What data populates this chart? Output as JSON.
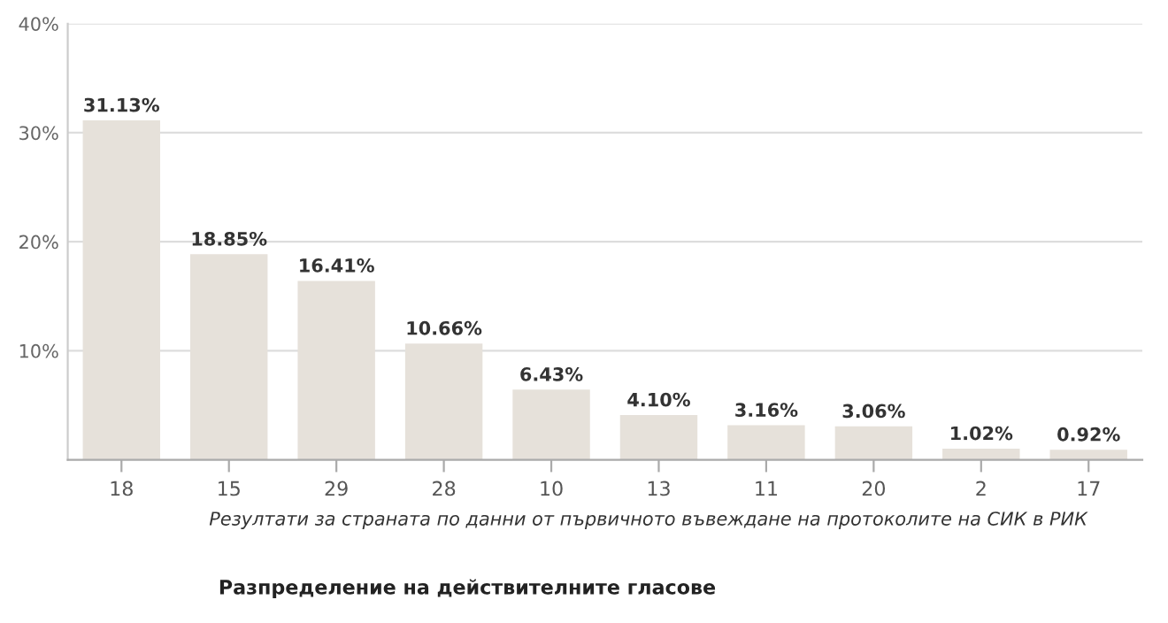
{
  "chart_data": {
    "type": "bar",
    "title": "Разпределение на действителните гласове",
    "categories": [
      "18",
      "15",
      "29",
      "28",
      "10",
      "13",
      "11",
      "20",
      "2",
      "17"
    ],
    "values": [
      31.13,
      18.85,
      16.41,
      10.66,
      6.43,
      4.1,
      3.16,
      3.06,
      1.02,
      0.92
    ],
    "value_labels": [
      "31.13%",
      "18.85%",
      "16.41%",
      "10.66%",
      "6.43%",
      "4.10%",
      "3.16%",
      "3.06%",
      "1.02%",
      "0.92%"
    ],
    "color": "#e6e1da",
    "ylim": [
      0,
      40
    ],
    "yticks": [
      {
        "value": 10,
        "label": "10%"
      },
      {
        "value": 20,
        "label": "20%"
      },
      {
        "value": 30,
        "label": "30%"
      },
      {
        "value": 40,
        "label": "40%"
      }
    ],
    "grid": "y",
    "annotations": [
      "Резултати за страната по данни от първичното въвеждане на протоколите на СИК в РИК"
    ]
  }
}
